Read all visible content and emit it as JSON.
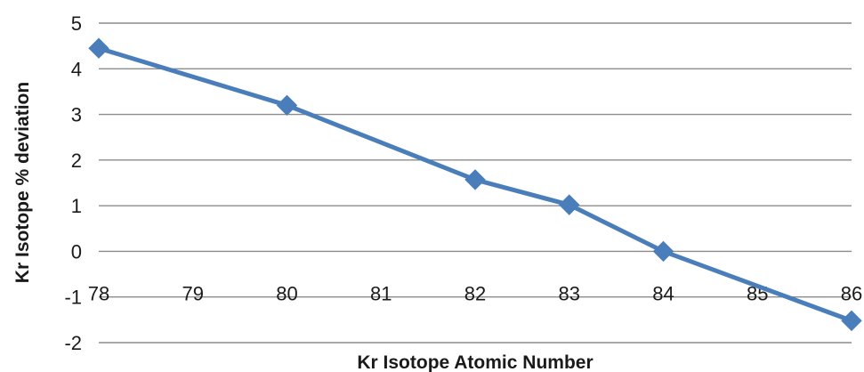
{
  "chart_data": {
    "type": "line",
    "title": "",
    "xlabel": "Kr Isotope Atomic Number",
    "ylabel": "Kr Isotope %  deviation",
    "x_ticks": [
      "78",
      "79",
      "80",
      "81",
      "82",
      "83",
      "84",
      "85",
      "86"
    ],
    "y_ticks": [
      "5",
      "4",
      "3",
      "2",
      "1",
      "0",
      "-1",
      "-2"
    ],
    "xlim": [
      78,
      86
    ],
    "ylim": [
      -2,
      5
    ],
    "grid": true,
    "legend": "none",
    "color": "#4a7ebb",
    "series": [
      {
        "x": [
          78,
          80,
          82,
          83,
          84,
          86
        ],
        "y": [
          4.45,
          3.2,
          1.57,
          1.02,
          0.0,
          -1.52
        ]
      }
    ]
  }
}
